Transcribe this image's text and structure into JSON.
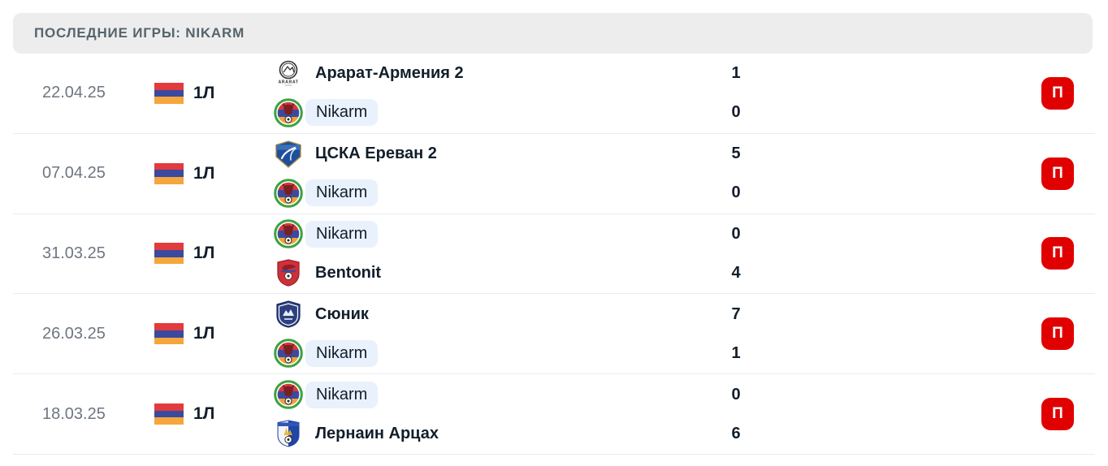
{
  "header": {
    "title": "ПОСЛЕДНИЕ ИГРЫ: NIKARM"
  },
  "flag": {
    "name": "armenia-flag-icon",
    "colors": [
      "#e23b3e",
      "#3a4a9f",
      "#f5a63c"
    ]
  },
  "colors": {
    "badge_red": "#e10000",
    "pill_blue": "#e9f1fc",
    "header_bg": "#ededed",
    "text_dark": "#121e2b",
    "date_grey": "#6d7680"
  },
  "logo_texts": {
    "ararat": "ARARAT"
  },
  "matches": [
    {
      "date": "22.04.25",
      "league": "1Л",
      "result": "П",
      "teams": [
        {
          "name": "Арарат-Армения 2",
          "logo": "ararat-armenia-2-logo",
          "score": "1",
          "highlight": false
        },
        {
          "name": "Nikarm",
          "logo": "nikarm-logo",
          "score": "0",
          "highlight": true
        }
      ]
    },
    {
      "date": "07.04.25",
      "league": "1Л",
      "result": "П",
      "teams": [
        {
          "name": "ЦСКА Ереван 2",
          "logo": "cska-yerevan-2-logo",
          "score": "5",
          "highlight": false
        },
        {
          "name": "Nikarm",
          "logo": "nikarm-logo",
          "score": "0",
          "highlight": true
        }
      ]
    },
    {
      "date": "31.03.25",
      "league": "1Л",
      "result": "П",
      "teams": [
        {
          "name": "Nikarm",
          "logo": "nikarm-logo",
          "score": "0",
          "highlight": true
        },
        {
          "name": "Bentonit",
          "logo": "bentonit-logo",
          "score": "4",
          "highlight": false
        }
      ]
    },
    {
      "date": "26.03.25",
      "league": "1Л",
      "result": "П",
      "teams": [
        {
          "name": "Сюник",
          "logo": "syunik-logo",
          "score": "7",
          "highlight": false
        },
        {
          "name": "Nikarm",
          "logo": "nikarm-logo",
          "score": "1",
          "highlight": true
        }
      ]
    },
    {
      "date": "18.03.25",
      "league": "1Л",
      "result": "П",
      "teams": [
        {
          "name": "Nikarm",
          "logo": "nikarm-logo",
          "score": "0",
          "highlight": true
        },
        {
          "name": "Лернаин Арцах",
          "logo": "lernain-artsakh-logo",
          "score": "6",
          "highlight": false
        }
      ]
    }
  ]
}
